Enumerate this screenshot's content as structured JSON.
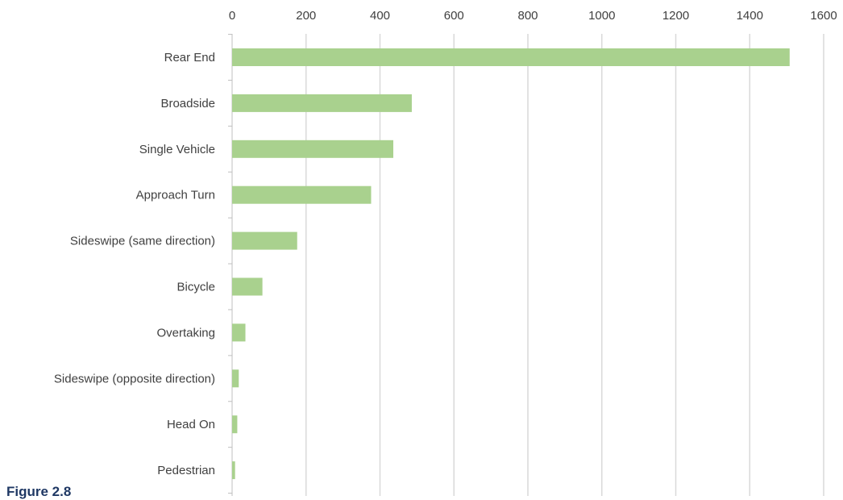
{
  "caption": "Figure 2.8",
  "chart_data": {
    "type": "bar",
    "orientation": "horizontal",
    "categories": [
      "Rear End",
      "Broadside",
      "Single Vehicle",
      "Approach Turn",
      "Sideswipe (same direction)",
      "Bicycle",
      "Overtaking",
      "Sideswipe (opposite direction)",
      "Head On",
      "Pedestrian"
    ],
    "values": [
      1508,
      486,
      436,
      376,
      176,
      82,
      36,
      18,
      14,
      8
    ],
    "xlim": [
      0,
      1600
    ],
    "xticks": [
      "0",
      "200",
      "400",
      "600",
      "800",
      "1000",
      "1200",
      "1400",
      "1600"
    ],
    "x_axis_position": "top",
    "grid": true,
    "legend": "none",
    "bar_color": "#a9d18e"
  }
}
